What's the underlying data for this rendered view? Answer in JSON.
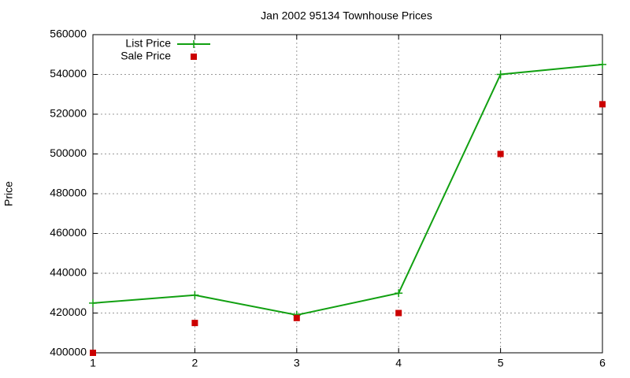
{
  "chart_data": {
    "type": "line",
    "title": "Jan 2002 95134 Townhouse Prices",
    "y_label": "Price",
    "x": [
      1,
      2,
      3,
      4,
      5,
      6
    ],
    "series": [
      {
        "name": "List Price",
        "color": "#11a011",
        "style": "lines+markers",
        "values": [
          425000,
          429000,
          419000,
          430000,
          540000,
          545000
        ]
      },
      {
        "name": "Sale Price",
        "color": "#cc0000",
        "style": "markers",
        "values": [
          400000,
          415000,
          417500,
          420000,
          500000,
          525000
        ]
      }
    ],
    "xlim": [
      1,
      6
    ],
    "xticks": [
      1,
      2,
      3,
      4,
      5,
      6
    ],
    "ylim": [
      400000,
      560000
    ],
    "yticks": [
      400000,
      420000,
      440000,
      460000,
      480000,
      500000,
      520000,
      540000,
      560000
    ],
    "grid": true,
    "legend": "top-left"
  }
}
